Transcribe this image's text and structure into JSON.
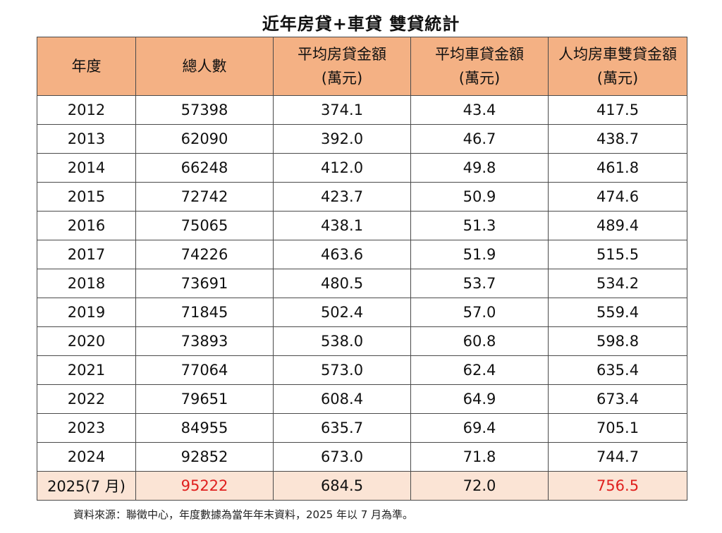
{
  "title": "近年房貸+車貸 雙貸統計",
  "headers": [
    {
      "line1": "年度",
      "line2": ""
    },
    {
      "line1": "總人數",
      "line2": ""
    },
    {
      "line1": "平均房貸金額",
      "line2": "(萬元)"
    },
    {
      "line1": "平均車貸金額",
      "line2": "(萬元)"
    },
    {
      "line1": "人均房車雙貸金額",
      "line2": "(萬元)"
    }
  ],
  "rows": [
    [
      "2012",
      "57398",
      "374.1",
      "43.4",
      "417.5"
    ],
    [
      "2013",
      "62090",
      "392.0",
      "46.7",
      "438.7"
    ],
    [
      "2014",
      "66248",
      "412.0",
      "49.8",
      "461.8"
    ],
    [
      "2015",
      "72742",
      "423.7",
      "50.9",
      "474.6"
    ],
    [
      "2016",
      "75065",
      "438.1",
      "51.3",
      "489.4"
    ],
    [
      "2017",
      "74226",
      "463.6",
      "51.9",
      "515.5"
    ],
    [
      "2018",
      "73691",
      "480.5",
      "53.7",
      "534.2"
    ],
    [
      "2019",
      "71845",
      "502.4",
      "57.0",
      "559.4"
    ],
    [
      "2020",
      "73893",
      "538.0",
      "60.8",
      "598.8"
    ],
    [
      "2021",
      "77064",
      "573.0",
      "62.4",
      "635.4"
    ],
    [
      "2022",
      "79651",
      "608.4",
      "64.9",
      "673.4"
    ],
    [
      "2023",
      "84955",
      "635.7",
      "69.4",
      "705.1"
    ],
    [
      "2024",
      "92852",
      "673.0",
      "71.8",
      "744.7"
    ],
    [
      "2025(7 月)",
      "95222",
      "684.5",
      "72.0",
      "756.5"
    ]
  ],
  "colors": {
    "header_bg": "#f4b184",
    "highlight_bg": "#fbe4d5",
    "highlight_text": "#e0201e"
  },
  "note": "資料來源：聯徵中心，年度數據為當年年末資料，2025 年以 7 月為準。"
}
